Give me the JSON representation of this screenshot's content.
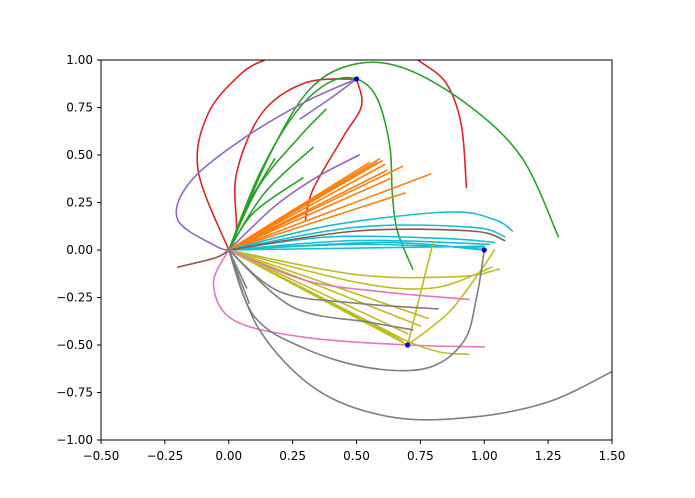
{
  "chart_data": {
    "type": "line",
    "title": "",
    "xlabel": "",
    "ylabel": "",
    "xlim": [
      -0.5,
      1.5
    ],
    "ylim": [
      -1.0,
      1.0
    ],
    "grid": false,
    "legend": "none",
    "x_ticks": [
      "−0.50",
      "−0.25",
      "0.00",
      "0.25",
      "0.50",
      "0.75",
      "1.00",
      "1.25",
      "1.50"
    ],
    "y_ticks": [
      "−1.00",
      "−0.75",
      "−0.50",
      "−0.25",
      "0.00",
      "0.25",
      "0.50",
      "0.75",
      "1.00"
    ],
    "x_tick_values": [
      -0.5,
      -0.25,
      0.0,
      0.25,
      0.5,
      0.75,
      1.0,
      1.25,
      1.5
    ],
    "y_tick_values": [
      -1.0,
      -0.75,
      -0.5,
      -0.25,
      0.0,
      0.25,
      0.5,
      0.75,
      1.0
    ],
    "targets": [
      {
        "x": 0.5,
        "y": 0.9,
        "color": "#0000cc"
      },
      {
        "x": 1.0,
        "y": 0.0,
        "color": "#0000cc"
      },
      {
        "x": 0.7,
        "y": -0.5,
        "color": "#0000cc"
      }
    ],
    "series": [
      {
        "color": "#d62728",
        "points": [
          [
            0.5,
            0.9
          ],
          [
            0.3,
            0.88
          ],
          [
            0.13,
            0.72
          ],
          [
            0.03,
            0.4
          ],
          [
            0.03,
            0.1
          ],
          [
            0.0,
            0.0
          ]
        ]
      },
      {
        "color": "#d62728",
        "points": [
          [
            0.0,
            0.0
          ],
          [
            -0.12,
            0.42
          ],
          [
            -0.08,
            0.72
          ],
          [
            0.05,
            0.93
          ],
          [
            0.14,
            1.0
          ]
        ]
      },
      {
        "color": "#d62728",
        "points": [
          [
            0.74,
            1.0
          ],
          [
            0.85,
            0.88
          ],
          [
            0.91,
            0.66
          ],
          [
            0.93,
            0.33
          ]
        ]
      },
      {
        "color": "#d62728",
        "points": [
          [
            0.3,
            0.16
          ],
          [
            0.33,
            0.32
          ],
          [
            0.45,
            0.6
          ],
          [
            0.52,
            0.76
          ],
          [
            0.5,
            0.9
          ]
        ]
      },
      {
        "color": "#2ca02c",
        "points": [
          [
            0.0,
            0.0
          ],
          [
            0.12,
            0.4
          ],
          [
            0.26,
            0.72
          ],
          [
            0.39,
            0.88
          ],
          [
            0.5,
            0.9
          ],
          [
            0.58,
            0.8
          ],
          [
            0.63,
            0.55
          ],
          [
            0.64,
            0.3
          ],
          [
            0.66,
            0.1
          ],
          [
            0.72,
            -0.1
          ]
        ]
      },
      {
        "color": "#2ca02c",
        "points": [
          [
            0.0,
            0.0
          ],
          [
            0.16,
            0.5
          ],
          [
            0.32,
            0.85
          ],
          [
            0.5,
            0.98
          ],
          [
            0.7,
            0.95
          ],
          [
            0.95,
            0.75
          ],
          [
            1.15,
            0.48
          ],
          [
            1.29,
            0.07
          ]
        ]
      },
      {
        "color": "#2ca02c",
        "points": [
          [
            0.0,
            0.0
          ],
          [
            0.08,
            0.25
          ],
          [
            0.18,
            0.48
          ]
        ]
      },
      {
        "color": "#2ca02c",
        "points": [
          [
            0.0,
            0.0
          ],
          [
            0.14,
            0.3
          ],
          [
            0.33,
            0.54
          ]
        ]
      },
      {
        "color": "#2ca02c",
        "points": [
          [
            0.0,
            0.0
          ],
          [
            0.1,
            0.2
          ],
          [
            0.29,
            0.38
          ]
        ]
      },
      {
        "color": "#2ca02c",
        "points": [
          [
            0.0,
            0.0
          ],
          [
            0.12,
            0.34
          ],
          [
            0.28,
            0.6
          ],
          [
            0.38,
            0.74
          ]
        ]
      },
      {
        "color": "#9467bd",
        "points": [
          [
            0.5,
            0.9
          ],
          [
            0.3,
            0.78
          ],
          [
            0.05,
            0.58
          ],
          [
            -0.15,
            0.36
          ],
          [
            -0.2,
            0.16
          ],
          [
            -0.05,
            0.02
          ],
          [
            0.0,
            0.0
          ]
        ]
      },
      {
        "color": "#9467bd",
        "points": [
          [
            0.0,
            0.0
          ],
          [
            0.18,
            0.23
          ],
          [
            0.34,
            0.38
          ],
          [
            0.51,
            0.5
          ]
        ]
      },
      {
        "color": "#9467bd",
        "points": [
          [
            0.28,
            0.69
          ],
          [
            0.4,
            0.8
          ],
          [
            0.5,
            0.9
          ]
        ]
      },
      {
        "color": "#ff7f0e",
        "points": [
          [
            0.0,
            0.0
          ],
          [
            0.59,
            0.48
          ]
        ]
      },
      {
        "color": "#ff7f0e",
        "points": [
          [
            0.0,
            0.0
          ],
          [
            0.6,
            0.47
          ]
        ]
      },
      {
        "color": "#ff7f0e",
        "points": [
          [
            0.0,
            0.0
          ],
          [
            0.58,
            0.46
          ]
        ]
      },
      {
        "color": "#ff7f0e",
        "points": [
          [
            0.0,
            0.0
          ],
          [
            0.61,
            0.45
          ]
        ]
      },
      {
        "color": "#ff7f0e",
        "points": [
          [
            0.0,
            0.0
          ],
          [
            0.62,
            0.42
          ]
        ]
      },
      {
        "color": "#ff7f0e",
        "points": [
          [
            0.0,
            0.0
          ],
          [
            0.68,
            0.44
          ]
        ]
      },
      {
        "color": "#ff7f0e",
        "points": [
          [
            0.0,
            0.0
          ],
          [
            0.64,
            0.38
          ]
        ]
      },
      {
        "color": "#ff7f0e",
        "points": [
          [
            0.0,
            0.0
          ],
          [
            0.79,
            0.4
          ]
        ]
      },
      {
        "color": "#ff7f0e",
        "points": [
          [
            0.0,
            0.0
          ],
          [
            0.69,
            0.3
          ]
        ]
      },
      {
        "color": "#ff7f0e",
        "points": [
          [
            0.0,
            0.0
          ],
          [
            0.55,
            0.46
          ]
        ]
      },
      {
        "color": "#17becf",
        "points": [
          [
            0.0,
            0.0
          ],
          [
            1.0,
            0.02
          ]
        ]
      },
      {
        "color": "#17becf",
        "points": [
          [
            0.0,
            0.0
          ],
          [
            0.5,
            0.03
          ],
          [
            1.0,
            0.01
          ]
        ]
      },
      {
        "color": "#17becf",
        "points": [
          [
            0.0,
            0.0
          ],
          [
            0.5,
            0.05
          ],
          [
            1.02,
            0.03
          ]
        ]
      },
      {
        "color": "#17becf",
        "points": [
          [
            0.0,
            0.0
          ],
          [
            0.4,
            0.07
          ],
          [
            0.85,
            0.06
          ],
          [
            1.04,
            0.04
          ]
        ]
      },
      {
        "color": "#17becf",
        "points": [
          [
            0.0,
            0.0
          ],
          [
            0.5,
            0.12
          ],
          [
            0.95,
            0.12
          ],
          [
            1.08,
            0.07
          ]
        ]
      },
      {
        "color": "#17becf",
        "points": [
          [
            0.0,
            0.0
          ],
          [
            0.4,
            0.13
          ],
          [
            0.86,
            0.2
          ],
          [
            1.04,
            0.16
          ],
          [
            1.11,
            0.1
          ]
        ]
      },
      {
        "color": "#17becf",
        "points": [
          [
            0.0,
            0.0
          ],
          [
            0.6,
            0.04
          ],
          [
            1.0,
            0.0
          ]
        ]
      },
      {
        "color": "#8c564b",
        "points": [
          [
            0.0,
            0.0
          ],
          [
            0.5,
            0.1
          ],
          [
            0.95,
            0.1
          ],
          [
            1.08,
            0.05
          ]
        ]
      },
      {
        "color": "#8c564b",
        "points": [
          [
            -0.2,
            -0.09
          ],
          [
            -0.05,
            -0.04
          ],
          [
            0.0,
            0.0
          ]
        ]
      },
      {
        "color": "#bcbd22",
        "points": [
          [
            0.0,
            0.0
          ],
          [
            0.7,
            -0.5
          ]
        ]
      },
      {
        "color": "#bcbd22",
        "points": [
          [
            0.0,
            0.0
          ],
          [
            0.68,
            -0.48
          ]
        ]
      },
      {
        "color": "#bcbd22",
        "points": [
          [
            0.0,
            0.0
          ],
          [
            0.67,
            -0.46
          ]
        ]
      },
      {
        "color": "#bcbd22",
        "points": [
          [
            0.0,
            0.0
          ],
          [
            0.7,
            -0.44
          ]
        ]
      },
      {
        "color": "#bcbd22",
        "points": [
          [
            0.0,
            0.0
          ],
          [
            0.75,
            -0.4
          ]
        ]
      },
      {
        "color": "#bcbd22",
        "points": [
          [
            0.0,
            0.0
          ],
          [
            0.78,
            -0.36
          ]
        ]
      },
      {
        "color": "#bcbd22",
        "points": [
          [
            0.0,
            0.0
          ],
          [
            0.7,
            -0.48
          ],
          [
            0.94,
            -0.55
          ]
        ]
      },
      {
        "color": "#bcbd22",
        "points": [
          [
            0.0,
            0.0
          ],
          [
            0.5,
            -0.13
          ],
          [
            0.9,
            -0.14
          ],
          [
            1.06,
            -0.1
          ]
        ]
      },
      {
        "color": "#bcbd22",
        "points": [
          [
            0.0,
            0.0
          ],
          [
            0.5,
            -0.17
          ],
          [
            0.8,
            -0.2
          ],
          [
            1.03,
            -0.09
          ]
        ]
      },
      {
        "color": "#bcbd22",
        "points": [
          [
            0.7,
            -0.5
          ],
          [
            0.86,
            -0.33
          ],
          [
            0.98,
            -0.12
          ],
          [
            1.04,
            0.0
          ]
        ]
      },
      {
        "color": "#bcbd22",
        "points": [
          [
            0.7,
            -0.5
          ],
          [
            0.8,
            0.04
          ]
        ]
      },
      {
        "color": "#e377c2",
        "points": [
          [
            0.0,
            0.0
          ],
          [
            -0.06,
            -0.18
          ],
          [
            0.02,
            -0.37
          ],
          [
            0.3,
            -0.46
          ],
          [
            0.7,
            -0.5
          ],
          [
            1.0,
            -0.51
          ]
        ]
      },
      {
        "color": "#e377c2",
        "points": [
          [
            0.0,
            0.0
          ],
          [
            0.3,
            -0.16
          ],
          [
            0.6,
            -0.22
          ],
          [
            0.94,
            -0.26
          ]
        ]
      },
      {
        "color": "#7f7f7f",
        "points": [
          [
            0.0,
            0.0
          ],
          [
            0.1,
            -0.35
          ],
          [
            0.3,
            -0.52
          ],
          [
            0.55,
            -0.62
          ],
          [
            0.78,
            -0.62
          ],
          [
            0.92,
            -0.48
          ],
          [
            0.97,
            -0.25
          ],
          [
            1.0,
            0.0
          ]
        ]
      },
      {
        "color": "#7f7f7f",
        "points": [
          [
            0.0,
            0.0
          ],
          [
            0.12,
            -0.42
          ],
          [
            0.35,
            -0.74
          ],
          [
            0.64,
            -0.88
          ],
          [
            0.95,
            -0.88
          ],
          [
            1.25,
            -0.8
          ],
          [
            1.5,
            -0.64
          ]
        ]
      },
      {
        "color": "#7f7f7f",
        "points": [
          [
            0.0,
            0.0
          ],
          [
            0.2,
            -0.22
          ],
          [
            0.5,
            -0.28
          ],
          [
            0.82,
            -0.31
          ]
        ]
      },
      {
        "color": "#7f7f7f",
        "points": [
          [
            0.0,
            0.0
          ],
          [
            0.25,
            -0.3
          ],
          [
            0.55,
            -0.38
          ],
          [
            0.72,
            -0.42
          ]
        ]
      },
      {
        "color": "#7f7f7f",
        "points": [
          [
            0.0,
            0.0
          ],
          [
            0.08,
            -0.28
          ]
        ]
      },
      {
        "color": "#7f7f7f",
        "points": [
          [
            0.0,
            0.0
          ],
          [
            0.07,
            -0.2
          ]
        ]
      }
    ]
  }
}
